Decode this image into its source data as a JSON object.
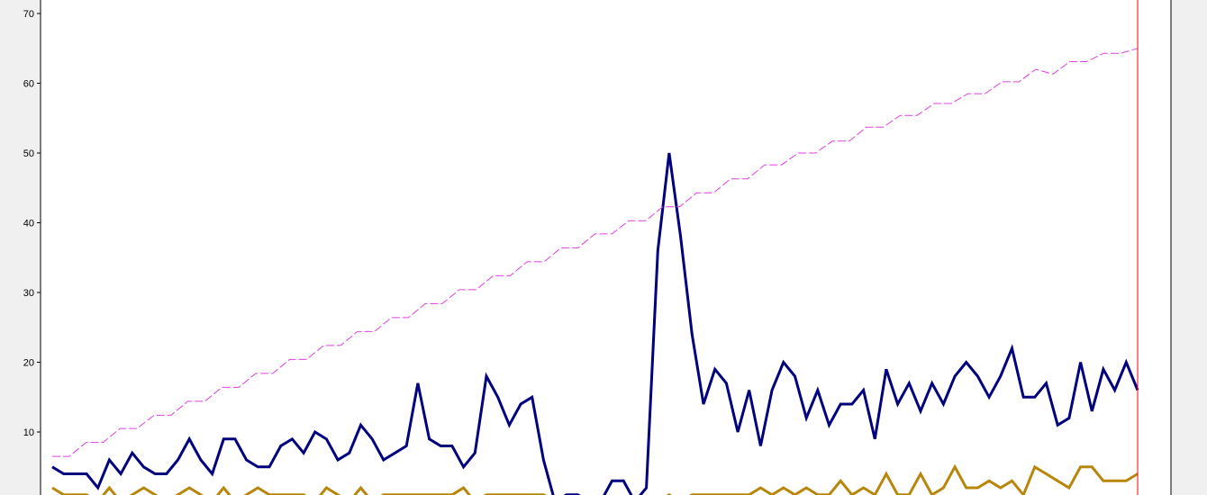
{
  "colors": {
    "window_bg": "#f0f0f0",
    "plot_bg": "#ffffff",
    "axis": "#000000",
    "marker": "#ff0000"
  },
  "chart_data": {
    "type": "line",
    "title": "",
    "xlabel": "",
    "ylabel": "",
    "ylim": [
      0,
      71
    ],
    "yticks": [
      {
        "value": 10,
        "label": "10"
      },
      {
        "value": 20,
        "label": "20"
      },
      {
        "value": 30,
        "label": "30"
      },
      {
        "value": 40,
        "label": "40"
      },
      {
        "value": 50,
        "label": "50"
      },
      {
        "value": 60,
        "label": "60"
      },
      {
        "value": 70,
        "label": "70"
      }
    ],
    "grid": false,
    "x_count": 100,
    "marker_index": 99,
    "series": [
      {
        "color": "#00007f",
        "style": "solid",
        "values": [
          5,
          4,
          4,
          4,
          2,
          6,
          4,
          7,
          5,
          4,
          4,
          6,
          9,
          6,
          4,
          9,
          9,
          6,
          5,
          5,
          8,
          9,
          7,
          10,
          9,
          6,
          7,
          11,
          9,
          6,
          7,
          8,
          17,
          9,
          8,
          8,
          5,
          7,
          18,
          15,
          11,
          14,
          15,
          6,
          0,
          1,
          1,
          0,
          0,
          3,
          3,
          0,
          2,
          36,
          50,
          38,
          24,
          14,
          19,
          17,
          10,
          16,
          8,
          16,
          20,
          18,
          12,
          16,
          11,
          14,
          14,
          16,
          9,
          19,
          14,
          17,
          13,
          17,
          14,
          18,
          20,
          18,
          15,
          18,
          22,
          15,
          15,
          17,
          11,
          12,
          20,
          13,
          19,
          16,
          20,
          16
        ]
      },
      {
        "color": "#b8860b",
        "style": "solid",
        "values": [
          2,
          1,
          1,
          1,
          0,
          2,
          0,
          1,
          2,
          1,
          0,
          1,
          2,
          1,
          0,
          2,
          0,
          1,
          2,
          1,
          1,
          1,
          1,
          0,
          2,
          1,
          0,
          2,
          0,
          1,
          1,
          1,
          1,
          1,
          1,
          1,
          2,
          0,
          1,
          1,
          1,
          1,
          1,
          1,
          0,
          0,
          0,
          0,
          0,
          0,
          0,
          0,
          0,
          0,
          1,
          0,
          1,
          1,
          1,
          1,
          1,
          1,
          2,
          1,
          2,
          1,
          2,
          1,
          1,
          3,
          1,
          2,
          1,
          4,
          1,
          1,
          4,
          1,
          2,
          5,
          2,
          2,
          3,
          2,
          3,
          1,
          5,
          4,
          3,
          2,
          5,
          5,
          3,
          3,
          3,
          4
        ]
      },
      {
        "color": "#e040e0",
        "style": "dashed",
        "values": [
          6.5,
          6.5,
          8.5,
          8.5,
          10.5,
          10.5,
          12.4,
          12.4,
          14.4,
          14.4,
          16.4,
          16.4,
          18.4,
          18.4,
          20.4,
          20.4,
          22.4,
          22.4,
          24.4,
          24.4,
          26.4,
          26.4,
          28.4,
          28.4,
          30.4,
          30.4,
          32.4,
          32.4,
          34.4,
          34.4,
          36.4,
          36.4,
          38.4,
          38.4,
          40.3,
          40.3,
          42.3,
          42.3,
          44.3,
          44.3,
          46.3,
          46.3,
          48.3,
          48.3,
          50.0,
          50.0,
          51.7,
          51.7,
          53.7,
          53.7,
          55.4,
          55.4,
          57.1,
          57.1,
          58.5,
          58.5,
          60.2,
          60.2,
          62.0,
          61.3,
          63.1,
          63.1,
          64.3,
          64.3,
          65.0
        ]
      }
    ]
  }
}
